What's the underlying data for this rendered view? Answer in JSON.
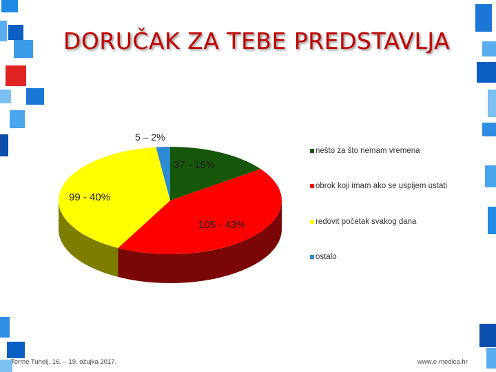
{
  "title": "DORUČAK ZA TEBE PREDSTAVLJA",
  "chart_data": {
    "type": "pie",
    "style": "3d",
    "slices": [
      {
        "label": "nešto za što nemam vremena",
        "value": 37,
        "data_label": "37 - 15%",
        "color": "#16570c",
        "side_color": "#0e3a08"
      },
      {
        "label": "obrok koji imam ako se uspijem ustati",
        "value": 105,
        "data_label": "105 - 43%",
        "color": "#ff0000",
        "side_color": "#7a0606"
      },
      {
        "label": "redovit početak svakog dana",
        "value": 99,
        "data_label": "99 - 40%",
        "color": "#ffff00",
        "side_color": "#7d7d00"
      },
      {
        "label": "ostalo",
        "value": 5,
        "data_label": "5 – 2%",
        "color": "#2d8bd4",
        "side_color": "#1a5a8e"
      }
    ],
    "legend_position": "right"
  },
  "footer": {
    "left": "Terme Tuhelj, 16. – 19. ožujka 2017.",
    "right": "www.e-medica.hr"
  }
}
